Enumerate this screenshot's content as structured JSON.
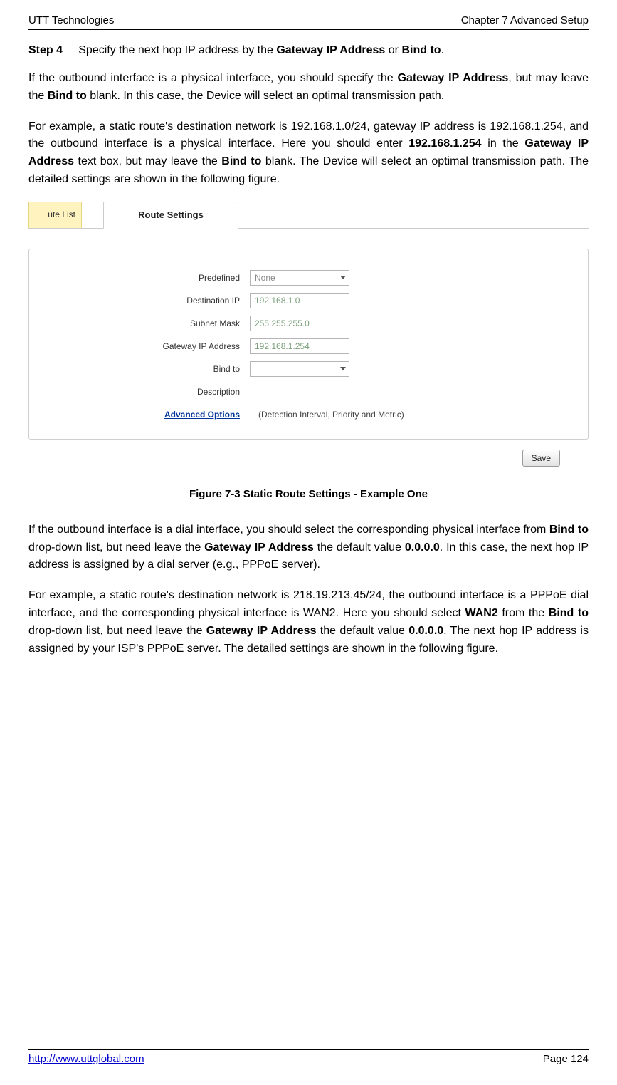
{
  "header": {
    "left": "UTT Technologies",
    "right": "Chapter 7 Advanced Setup"
  },
  "step": {
    "label": "Step 4",
    "text_before": "Specify the next hop IP address by the ",
    "bold1": "Gateway IP Address",
    "mid": " or ",
    "bold2": "Bind to",
    "after": "."
  },
  "para1": {
    "seg1": "If the outbound interface is a physical interface, you should specify the ",
    "b1": "Gateway IP Address",
    "seg2": ", but may leave the ",
    "b2": "Bind to",
    "seg3": " blank. In this case, the Device will select an optimal transmission path."
  },
  "para2": {
    "seg1": "For example, a static route's destination network is 192.168.1.0/24, gateway IP address is 192.168.1.254, and the outbound interface is a physical interface. Here you should enter ",
    "b1": "192.168.1.254",
    "seg2": " in the ",
    "b2": "Gateway IP Address",
    "seg3": " text box, but may leave the ",
    "b3": "Bind to",
    "seg4": " blank. The Device will select an optimal transmission path. The detailed settings are shown in the following figure."
  },
  "tabs": {
    "left": "ute List",
    "active": "Route Settings"
  },
  "form": {
    "predefined": {
      "label": "Predefined",
      "value": "None"
    },
    "dest_ip": {
      "label": "Destination IP",
      "value": "192.168.1.0"
    },
    "subnet": {
      "label": "Subnet Mask",
      "value": "255.255.255.0"
    },
    "gateway": {
      "label": "Gateway IP Address",
      "value": "192.168.1.254"
    },
    "bind_to": {
      "label": "Bind to",
      "value": ""
    },
    "description": {
      "label": "Description",
      "value": ""
    },
    "advanced": {
      "label": "Advanced Options",
      "note": "(Detection Interval, Priority and Metric)"
    },
    "save": "Save"
  },
  "figure_caption": "Figure 7-3 Static Route Settings - Example One",
  "para3": {
    "seg1": "If the outbound interface is a dial interface, you should select the corresponding physical interface from ",
    "b1": "Bind to",
    "seg2": " drop-down list, but need leave the ",
    "b2": "Gateway IP Address",
    "seg3": " the default value ",
    "b3": "0.0.0.0",
    "seg4": ". In this case, the next hop IP address is assigned by a dial server (e.g., PPPoE server)."
  },
  "para4": {
    "seg1": "For example, a static route's destination network is 218.19.213.45/24, the outbound interface is a PPPoE dial interface, and the corresponding physical interface is WAN2. Here you should select ",
    "b1": "WAN2",
    "seg2": " from the ",
    "b2": "Bind to",
    "seg3": " drop-down list, but need leave the ",
    "b3": "Gateway IP Address",
    "seg4": " the default value ",
    "b4": "0.0.0.0",
    "seg5": ". The next hop IP address is assigned by your ISP's PPPoE server. The detailed settings are shown in the following figure."
  },
  "footer": {
    "url": "http://www.uttglobal.com",
    "page": "Page 124"
  }
}
